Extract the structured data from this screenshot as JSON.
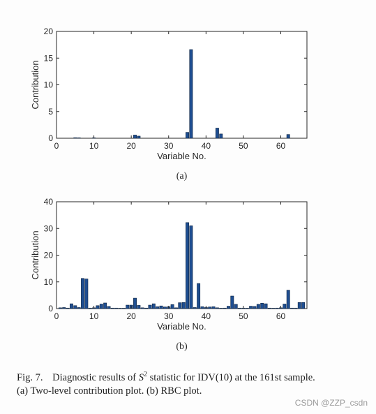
{
  "chart_data": [
    {
      "type": "bar",
      "xlabel": "Variable No.",
      "ylabel": "Contribution",
      "xlim": [
        0,
        67
      ],
      "ylim": [
        0,
        20
      ],
      "xticks": [
        0,
        10,
        20,
        30,
        40,
        50,
        60
      ],
      "yticks": [
        0,
        5,
        10,
        15,
        20
      ],
      "tick_labels_x": [
        "0",
        "10",
        "20",
        "30",
        "40",
        "50",
        "60"
      ],
      "tick_labels_y": [
        "0",
        "5",
        "10",
        "15",
        "20"
      ],
      "grid": false,
      "bar_color": "#1f4e91",
      "x": [
        5,
        6,
        10,
        21,
        22,
        35,
        36,
        43,
        44,
        62
      ],
      "values": [
        0.1,
        0.05,
        0.05,
        0.6,
        0.4,
        1.1,
        16.6,
        1.9,
        0.8,
        0.7
      ],
      "panel_label": "(a)"
    },
    {
      "type": "bar",
      "xlabel": "Variable No.",
      "ylabel": "Contribution",
      "xlim": [
        0,
        67
      ],
      "ylim": [
        0,
        40
      ],
      "xticks": [
        0,
        10,
        20,
        30,
        40,
        50,
        60
      ],
      "yticks": [
        0,
        10,
        20,
        30,
        40
      ],
      "tick_labels_x": [
        "0",
        "10",
        "20",
        "30",
        "40",
        "50",
        "60"
      ],
      "tick_labels_y": [
        "0",
        "10",
        "20",
        "30",
        "40"
      ],
      "grid": false,
      "bar_color": "#1f4e91",
      "x": [
        1,
        2,
        3,
        4,
        5,
        6,
        7,
        8,
        9,
        10,
        11,
        12,
        13,
        14,
        15,
        16,
        17,
        18,
        19,
        20,
        21,
        22,
        23,
        24,
        25,
        26,
        27,
        28,
        29,
        30,
        31,
        32,
        33,
        34,
        35,
        36,
        37,
        38,
        39,
        40,
        41,
        42,
        43,
        44,
        45,
        46,
        47,
        48,
        49,
        50,
        51,
        52,
        53,
        54,
        55,
        56,
        57,
        58,
        59,
        60,
        61,
        62,
        63,
        64,
        65,
        66
      ],
      "values": [
        0.3,
        0.4,
        0.2,
        1.8,
        1.1,
        0.4,
        11.3,
        11.1,
        0.2,
        0.3,
        1.1,
        1.7,
        2.1,
        0.8,
        0.2,
        0.2,
        0.1,
        0.1,
        1.3,
        1.3,
        3.9,
        1.2,
        0.3,
        0.2,
        1.3,
        1.8,
        0.7,
        1.0,
        0.6,
        0.7,
        1.5,
        0.3,
        2.2,
        2.3,
        32.2,
        31.0,
        0.4,
        9.4,
        0.7,
        0.4,
        0.6,
        0.7,
        0.3,
        0.1,
        0.2,
        0.9,
        4.7,
        1.6,
        0.2,
        0.2,
        0.1,
        0.9,
        0.8,
        1.6,
        2.0,
        1.8,
        0.2,
        0.1,
        0.2,
        0.3,
        1.7,
        6.9,
        0.2,
        0.2,
        2.3,
        2.3
      ],
      "panel_label": "(b)"
    }
  ],
  "caption": {
    "fig_label": "Fig. 7.",
    "line1_pre": "Diagnostic results of ",
    "stat_symbol": "S",
    "stat_power": "2",
    "line1_post": " statistic for IDV(10) at the 161st sample.",
    "line2": "(a) Two-level contribution plot. (b) RBC plot."
  },
  "watermark": "CSDN @ZZP_csdn"
}
